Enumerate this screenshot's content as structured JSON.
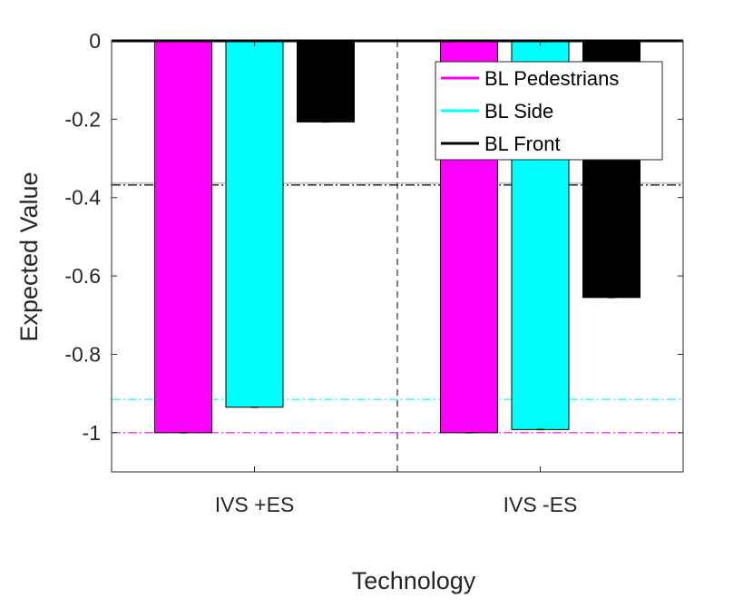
{
  "chart_data": {
    "type": "bar",
    "xlabel": "Technology",
    "ylabel": "Expected Value",
    "categories": [
      "IVS +ES",
      "IVS -ES"
    ],
    "ylim": [
      -1.1,
      0
    ],
    "yticks": [
      0,
      -0.2,
      -0.4,
      -0.6,
      -0.8,
      -1
    ],
    "ytick_labels": [
      "0",
      "-0.2",
      "-0.4",
      "-0.6",
      "-0.8",
      "-1"
    ],
    "series": [
      {
        "name": "BL Pedestrians",
        "color": "#ff00ff",
        "values": [
          -1.0,
          -1.0
        ]
      },
      {
        "name": "BL Side",
        "color": "#00ffff",
        "values": [
          -0.935,
          -0.992
        ]
      },
      {
        "name": "BL Front",
        "color": "#000000",
        "values": [
          -0.207,
          -0.655
        ]
      }
    ],
    "reference_lines": [
      {
        "value": -0.368,
        "color": "#000000",
        "style": "dash-dot"
      },
      {
        "value": -0.915,
        "color": "#00ffff",
        "style": "dash-dot"
      },
      {
        "value": -1.0,
        "color": "#ff00ff",
        "style": "dash-dot"
      }
    ],
    "separator": {
      "between_categories": true,
      "style": "dashed",
      "color": "#000000"
    },
    "legend_position": "top-right",
    "grid": false
  }
}
